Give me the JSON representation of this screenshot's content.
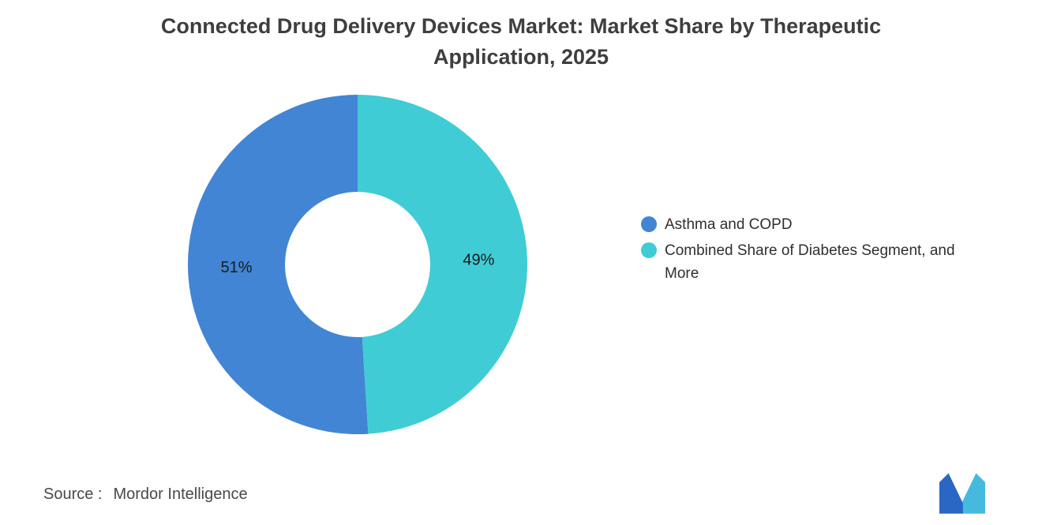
{
  "title": "Connected Drug Delivery Devices Market: Market Share by Therapeutic Application, 2025",
  "source": {
    "label": "Source :",
    "value": "Mordor Intelligence"
  },
  "logo": {
    "name": "Mordor Intelligence logo",
    "colors": [
      "#2a66c4",
      "#45b9de"
    ]
  },
  "chart_data": {
    "type": "pie",
    "donut": true,
    "title": "Connected Drug Delivery Devices Market: Market Share by Therapeutic Application, 2025",
    "start_angle_deg": 176.4,
    "direction": "clockwise",
    "legend_position": "right",
    "total": 100,
    "slices": [
      {
        "label": "Asthma and COPD",
        "value": 51,
        "data_label": "51%",
        "color": "#4285d4"
      },
      {
        "label": "Combined Share of Diabetes Segment, and More",
        "value": 49,
        "data_label": "49%",
        "color": "#40ccd5"
      }
    ]
  }
}
